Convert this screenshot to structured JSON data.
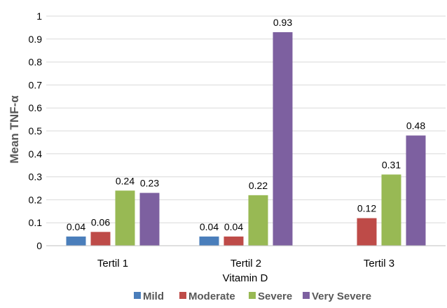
{
  "chart_data": {
    "type": "bar",
    "title": "",
    "xlabel": "Vitamin D",
    "ylabel": "Mean TNF-α",
    "ylim": [
      0,
      1
    ],
    "yticks": [
      "0",
      "0.1",
      "0.2",
      "0.3",
      "0.4",
      "0.5",
      "0.6",
      "0.7",
      "0.8",
      "0.9",
      "1"
    ],
    "grid": true,
    "legend_position": "bottom",
    "categories": [
      "Tertil 1",
      "Tertil 2",
      "Tertil 3"
    ],
    "series": [
      {
        "name": "Mild",
        "color": "#4a7ebb",
        "values": [
          0.04,
          0.04,
          null
        ],
        "labels": [
          "0.04",
          "0.04",
          ""
        ]
      },
      {
        "name": "Moderate",
        "color": "#be4b48",
        "values": [
          0.06,
          0.04,
          0.12
        ],
        "labels": [
          "0.06",
          "0.04",
          "0.12"
        ]
      },
      {
        "name": "Severe",
        "color": "#98b954",
        "values": [
          0.24,
          0.22,
          0.31
        ],
        "labels": [
          "0.24",
          "0.22",
          "0.31"
        ]
      },
      {
        "name": "Very Severe",
        "color": "#7d60a0",
        "values": [
          0.23,
          0.93,
          0.48
        ],
        "labels": [
          "0.23",
          "0.93",
          "0.48"
        ]
      }
    ]
  }
}
